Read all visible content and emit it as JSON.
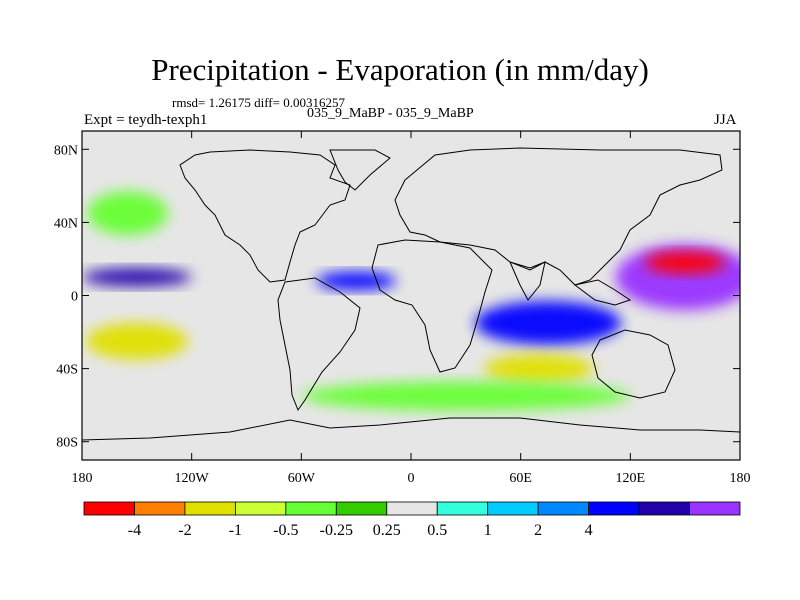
{
  "title": "Precipitation - Evaporation (in mm/day)",
  "stats_text": "rmsd= 1.26175 diff= 0.00316257",
  "expt_text": "Expt = teydh-texph1",
  "case_text": "035_9_MaBP - 035_9_MaBP",
  "season": "JJA",
  "map_data": {
    "type": "filled-contour-map",
    "projection": "cylindrical-equidistant",
    "lon_range": [
      -180,
      180
    ],
    "lat_range": [
      -90,
      90
    ],
    "lat_ticks": [
      {
        "value": 80,
        "label": "80N"
      },
      {
        "value": 40,
        "label": "40N"
      },
      {
        "value": 0,
        "label": "0"
      },
      {
        "value": -40,
        "label": "40S"
      },
      {
        "value": -80,
        "label": "80S"
      }
    ],
    "lon_ticks": [
      {
        "value": -180,
        "label": "180"
      },
      {
        "value": -120,
        "label": "120W"
      },
      {
        "value": -60,
        "label": "60W"
      },
      {
        "value": 0,
        "label": "0"
      },
      {
        "value": 60,
        "label": "60E"
      },
      {
        "value": 120,
        "label": "120E"
      },
      {
        "value": 180,
        "label": "180"
      }
    ],
    "regions": [
      {
        "name": "west-pacific-positive",
        "level": 12,
        "lat": 10,
        "lon": 150,
        "dlat": 18,
        "dlon": 38
      },
      {
        "name": "west-pacific-red",
        "level": 0,
        "lat": 18,
        "lon": 150,
        "dlat": 6,
        "dlon": 22
      },
      {
        "name": "indian-ocean-south-blue",
        "level": 10,
        "lat": -15,
        "lon": 75,
        "dlat": 12,
        "dlon": 40
      },
      {
        "name": "itcz-east-pacific",
        "level": 11,
        "lat": 10,
        "lon": -150,
        "dlat": 5,
        "dlon": 30
      },
      {
        "name": "itcz-atlantic",
        "level": 10,
        "lat": 8,
        "lon": -30,
        "dlat": 5,
        "dlon": 22
      },
      {
        "name": "south-pacific-yellow",
        "level": 2,
        "lat": -25,
        "lon": -150,
        "dlat": 10,
        "dlon": 28
      },
      {
        "name": "south-indian-yellow",
        "level": 2,
        "lat": -40,
        "lon": 70,
        "dlat": 8,
        "dlon": 30
      },
      {
        "name": "south-ocean-green",
        "level": 4,
        "lat": -55,
        "lon": 30,
        "dlat": 8,
        "dlon": 90
      },
      {
        "name": "north-pacific-green",
        "level": 4,
        "lat": 45,
        "lon": -155,
        "dlat": 12,
        "dlon": 22
      }
    ]
  },
  "colorbar": {
    "colors": [
      "#ff0000",
      "#ff8000",
      "#e0e000",
      "#ccff33",
      "#66ff33",
      "#33cc00",
      "#e6e6e6",
      "#33ffdd",
      "#00ccff",
      "#0088ff",
      "#0000ff",
      "#2200aa",
      "#9933ff"
    ],
    "levels": [
      -4,
      -2,
      -1,
      -0.5,
      -0.25,
      0.25,
      0.5,
      1,
      2,
      4
    ],
    "labels": [
      "-4",
      "-2",
      "-1",
      "-0.5",
      "-0.25",
      "0.25",
      "0.5",
      "1",
      "2",
      "4"
    ]
  }
}
